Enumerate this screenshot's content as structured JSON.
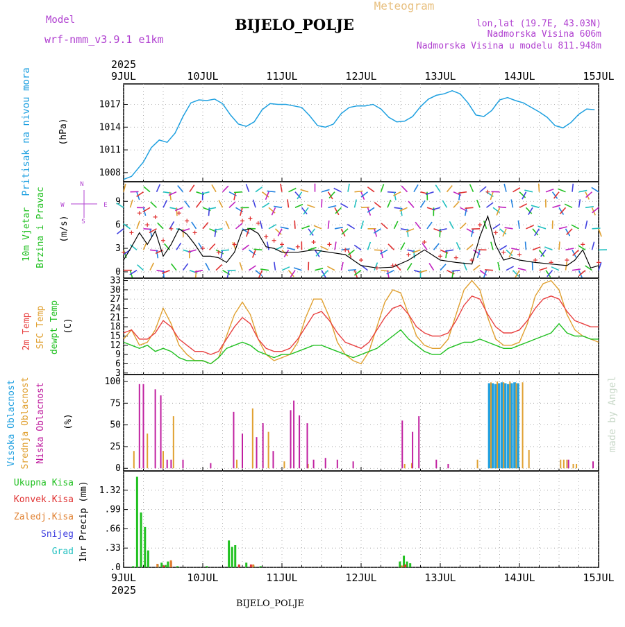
{
  "header": {
    "model_label": "Model",
    "model_name": "wrf-nmm_v3.9.1  e1km",
    "title": "BIJELO_POLJE",
    "meteogram_label": "Meteogram",
    "lonlat": "lon,lat (19.7E, 43.03N)",
    "elevation": "Nadmorska Visina 606m",
    "model_elevation": "Nadmorska Visina u modelu 811.948m"
  },
  "footer": {
    "station": "BIJELO_POLJE",
    "watermark": "made by Angel"
  },
  "time_axis": {
    "year": "2025",
    "tick_labels": [
      "9JUL",
      "10JUL",
      "11JUL",
      "12JUL",
      "13JUL",
      "14JUL",
      "15JUL"
    ]
  },
  "colors": {
    "pressure": "#1ea0e0",
    "wind_speed": "#000000",
    "gust": "#e03030",
    "temp2m": "#e84040",
    "sfc_temp": "#e0a030",
    "dewpoint": "#20c020",
    "cloud_high": "#20a0e0",
    "cloud_mid": "#e0a030",
    "cloud_low": "#c020a0",
    "rain_total": "#20c020",
    "rain_conv": "#e03030",
    "freezing": "#e08030",
    "snow": "#4040e0",
    "hail": "#20c0c0",
    "axis_purple": "#b040d0"
  },
  "chart_data": [
    {
      "type": "line",
      "panel": "pressure",
      "ylabel_line1": "Pritisak na nivou mora",
      "ylabel_unit": "(hPa)",
      "yticks": [
        1008,
        1011,
        1014,
        1017
      ],
      "ylim": [
        1006.8,
        1019.7
      ],
      "grid": true,
      "series": [
        {
          "name": "Pritisak na nivou mora",
          "x_days": [
            0,
            0.1,
            0.25,
            0.35,
            0.45,
            0.55,
            0.65,
            0.75,
            0.85,
            0.95,
            1.05,
            1.15,
            1.25,
            1.35,
            1.45,
            1.55,
            1.65,
            1.75,
            1.85,
            1.95,
            2.05,
            2.15,
            2.25,
            2.35,
            2.45,
            2.55,
            2.65,
            2.75,
            2.85,
            2.95,
            3.05,
            3.15,
            3.25,
            3.35,
            3.45,
            3.55,
            3.65,
            3.75,
            3.85,
            3.95,
            4.05,
            4.15,
            4.25,
            4.35,
            4.45,
            4.55,
            4.65,
            4.75,
            4.85,
            4.95,
            5.05,
            5.15,
            5.25,
            5.35,
            5.45,
            5.55,
            5.65,
            5.75,
            5.85,
            5.95
          ],
          "values": [
            1007.1,
            1007.5,
            1009.4,
            1011.3,
            1012.3,
            1012.0,
            1013.2,
            1015.4,
            1017.2,
            1017.6,
            1017.5,
            1017.7,
            1017.1,
            1015.6,
            1014.4,
            1014.1,
            1014.7,
            1016.3,
            1017.1,
            1017.0,
            1017.0,
            1016.8,
            1016.6,
            1015.5,
            1014.2,
            1014.0,
            1014.4,
            1015.8,
            1016.6,
            1016.8,
            1016.8,
            1017.0,
            1016.4,
            1015.3,
            1014.7,
            1014.8,
            1015.4,
            1016.7,
            1017.7,
            1018.2,
            1018.4,
            1018.8,
            1018.4,
            1017.2,
            1015.6,
            1015.4,
            1016.2,
            1017.6,
            1017.9,
            1017.5,
            1017.2,
            1016.6,
            1016.0,
            1015.3,
            1014.2,
            1013.9,
            1014.6,
            1015.7,
            1016.4,
            1016.3
          ]
        }
      ]
    },
    {
      "type": "line",
      "panel": "wind",
      "ylabel_line1": "10m Vjetar",
      "ylabel_line2": "Brzina i Pravac",
      "ylabel_unit": "(m/s)",
      "yticks": [
        0,
        3,
        6,
        9
      ],
      "ylim": [
        -0.8,
        11.5
      ],
      "compass": [
        "N",
        "W",
        "E",
        "S"
      ],
      "series": [
        {
          "name": "Brzina",
          "x_days": [
            0,
            0.1,
            0.2,
            0.3,
            0.4,
            0.5,
            0.6,
            0.7,
            0.8,
            0.9,
            1.0,
            1.1,
            1.2,
            1.3,
            1.4,
            1.5,
            1.6,
            1.7,
            1.8,
            1.9,
            2.0,
            2.2,
            2.4,
            2.6,
            2.8,
            3.0,
            3.2,
            3.4,
            3.6,
            3.8,
            4.0,
            4.2,
            4.4,
            4.5,
            4.6,
            4.7,
            4.8,
            4.9,
            5.0,
            5.2,
            5.4,
            5.6,
            5.7,
            5.8,
            5.9,
            6.0
          ],
          "values": [
            1.5,
            3.2,
            5.0,
            3.5,
            5.2,
            2.0,
            3.5,
            5.5,
            4.8,
            3.5,
            2.0,
            2.0,
            1.8,
            1.2,
            2.5,
            5.3,
            5.5,
            4.9,
            3.2,
            3.0,
            2.5,
            2.5,
            2.8,
            2.5,
            2.2,
            0.8,
            0.5,
            0.6,
            1.5,
            2.8,
            1.5,
            1.2,
            1.0,
            4.5,
            7.1,
            3.4,
            1.5,
            1.8,
            1.5,
            1.2,
            1.0,
            0.8,
            1.5,
            2.8,
            0.5,
            0.8
          ]
        },
        {
          "name": "Udar",
          "x_days": [
            0,
            0.1,
            0.2,
            0.3,
            0.4,
            0.5,
            0.6,
            0.7,
            0.8,
            0.9,
            1.0,
            1.2,
            1.4,
            1.5,
            1.6,
            1.7,
            1.8,
            1.9,
            2.0,
            2.2,
            2.4,
            2.6,
            2.8,
            3.0,
            3.2,
            3.4,
            3.6,
            3.8,
            4.0,
            4.2,
            4.4,
            4.5,
            4.6,
            4.7,
            4.8,
            5.0,
            5.2,
            5.4,
            5.6,
            5.8,
            6.0
          ],
          "values": [
            2.5,
            5.0,
            7.5,
            6.0,
            7.0,
            4.0,
            5.5,
            7.5,
            6.5,
            5.0,
            3.0,
            2.5,
            3.5,
            6.5,
            6.8,
            6.2,
            4.5,
            4.0,
            3.5,
            3.2,
            3.8,
            3.5,
            2.8,
            1.5,
            0.5,
            0.8,
            2.2,
            3.8,
            2.0,
            1.8,
            1.5,
            6.0,
            10.2,
            5.0,
            2.5,
            2.2,
            1.5,
            1.2,
            1.5,
            3.5,
            1.2
          ]
        }
      ]
    },
    {
      "type": "line",
      "panel": "temperature",
      "ylabel_line1": "2m Temp",
      "ylabel_line2": "SFC Temp",
      "ylabel_line3": "dewpt Temp",
      "ylabel_unit": "(C)",
      "yticks": [
        3,
        6,
        9,
        12,
        15,
        18,
        21,
        24,
        27,
        30,
        33
      ],
      "ylim": [
        2.5,
        33.8
      ],
      "series": [
        {
          "name": "2m Temp",
          "x_days": [
            0,
            0.1,
            0.2,
            0.3,
            0.4,
            0.5,
            0.6,
            0.7,
            0.8,
            0.9,
            1.0,
            1.1,
            1.2,
            1.3,
            1.4,
            1.5,
            1.6,
            1.7,
            1.8,
            1.9,
            2.0,
            2.1,
            2.2,
            2.3,
            2.4,
            2.5,
            2.6,
            2.7,
            2.8,
            2.9,
            3.0,
            3.1,
            3.2,
            3.3,
            3.4,
            3.5,
            3.6,
            3.7,
            3.8,
            3.9,
            4.0,
            4.1,
            4.2,
            4.3,
            4.4,
            4.5,
            4.6,
            4.7,
            4.8,
            4.9,
            5.0,
            5.1,
            5.2,
            5.3,
            5.4,
            5.5,
            5.6,
            5.7,
            5.8,
            5.9,
            6.0
          ],
          "values": [
            16,
            17,
            14,
            14,
            16,
            20,
            18,
            14,
            12,
            10,
            10,
            9,
            10,
            14,
            18,
            21,
            19,
            14,
            11,
            10,
            10,
            11,
            14,
            18,
            22,
            23,
            20,
            16,
            13,
            12,
            11,
            13,
            17,
            21,
            24,
            25,
            22,
            18,
            16,
            15,
            15,
            16,
            20,
            25,
            28,
            27,
            22,
            18,
            16,
            16,
            17,
            20,
            24,
            27,
            28,
            27,
            23,
            20,
            19,
            18,
            18
          ]
        },
        {
          "name": "SFC Temp",
          "x_days": [
            0,
            0.1,
            0.2,
            0.3,
            0.4,
            0.5,
            0.6,
            0.7,
            0.8,
            0.9,
            1.0,
            1.1,
            1.2,
            1.3,
            1.4,
            1.5,
            1.6,
            1.7,
            1.8,
            1.9,
            2.0,
            2.1,
            2.2,
            2.3,
            2.4,
            2.5,
            2.6,
            2.7,
            2.8,
            2.9,
            3.0,
            3.1,
            3.2,
            3.3,
            3.4,
            3.5,
            3.6,
            3.7,
            3.8,
            3.9,
            4.0,
            4.1,
            4.2,
            4.3,
            4.4,
            4.5,
            4.6,
            4.7,
            4.8,
            4.9,
            5.0,
            5.1,
            5.2,
            5.3,
            5.4,
            5.5,
            5.6,
            5.7,
            5.8,
            5.9,
            6.0
          ],
          "values": [
            14,
            17,
            12,
            13,
            17,
            24,
            19,
            12,
            9,
            7,
            7,
            6,
            8,
            15,
            22,
            26,
            22,
            14,
            9,
            7,
            8,
            9,
            13,
            21,
            27,
            27,
            21,
            13,
            9,
            7,
            6,
            10,
            18,
            26,
            30,
            29,
            22,
            15,
            12,
            11,
            11,
            14,
            22,
            30,
            33,
            30,
            21,
            14,
            12,
            12,
            13,
            19,
            28,
            32,
            33,
            30,
            22,
            17,
            15,
            14,
            13
          ]
        },
        {
          "name": "dewpt Temp",
          "x_days": [
            0,
            0.1,
            0.2,
            0.3,
            0.4,
            0.5,
            0.6,
            0.7,
            0.8,
            0.9,
            1.0,
            1.1,
            1.2,
            1.3,
            1.4,
            1.5,
            1.6,
            1.7,
            1.8,
            1.9,
            2.0,
            2.1,
            2.2,
            2.3,
            2.4,
            2.5,
            2.6,
            2.7,
            2.8,
            2.9,
            3.0,
            3.1,
            3.2,
            3.3,
            3.4,
            3.5,
            3.6,
            3.7,
            3.8,
            3.9,
            4.0,
            4.1,
            4.2,
            4.3,
            4.4,
            4.5,
            4.6,
            4.7,
            4.8,
            4.9,
            5.0,
            5.1,
            5.2,
            5.3,
            5.4,
            5.5,
            5.6,
            5.7,
            5.8,
            5.9,
            6.0
          ],
          "values": [
            13,
            12,
            11,
            12,
            10,
            11,
            10,
            8,
            7,
            7,
            7,
            6,
            8,
            11,
            12,
            13,
            12,
            10,
            9,
            8,
            9,
            9,
            10,
            11,
            12,
            12,
            11,
            10,
            9,
            8,
            9,
            10,
            11,
            13,
            15,
            17,
            14,
            12,
            10,
            9,
            9,
            11,
            12,
            13,
            13,
            14,
            13,
            12,
            11,
            11,
            12,
            13,
            14,
            15,
            16,
            19,
            16,
            15,
            15,
            14,
            14
          ]
        }
      ]
    },
    {
      "type": "bar",
      "panel": "clouds",
      "ylabel_line1": "Visoka Oblacnost",
      "ylabel_line2": "Srednja Oblacnost",
      "ylabel_line3": "Niska Oblacnost",
      "ylabel_unit": "(%)",
      "yticks": [
        0,
        25,
        50,
        75,
        100
      ],
      "ylim": [
        -3,
        108
      ],
      "series": [
        {
          "name": "Visoka Oblacnost",
          "x_days": [
            4.62,
            4.66,
            4.7,
            4.74,
            4.78,
            4.82,
            4.86,
            4.9,
            4.94,
            4.98
          ],
          "values": [
            98,
            98,
            97,
            98,
            99,
            98,
            97,
            98,
            99,
            98
          ]
        },
        {
          "name": "Srednja Oblacnost",
          "x_days": [
            0.13,
            0.3,
            0.5,
            0.63,
            1.43,
            1.63,
            1.83,
            2.03,
            2.33,
            3.55,
            3.64,
            4.47,
            4.64,
            4.72,
            4.8,
            4.88,
            4.96,
            5.04,
            5.12,
            5.52,
            5.56,
            5.6,
            5.68,
            5.72
          ],
          "values": [
            20,
            40,
            20,
            60,
            10,
            69,
            42,
            8,
            5,
            5,
            6,
            10,
            99,
            100,
            99,
            100,
            98,
            99,
            21,
            10,
            10,
            10,
            5,
            5
          ]
        },
        {
          "name": "Niska Oblacnost",
          "x_days": [
            0.2,
            0.25,
            0.4,
            0.47,
            0.55,
            0.6,
            0.75,
            1.1,
            1.39,
            1.5,
            1.68,
            1.76,
            1.89,
            2.11,
            2.15,
            2.22,
            2.32,
            2.4,
            2.55,
            2.7,
            2.9,
            3.52,
            3.65,
            3.73,
            3.95,
            4.1,
            5.62,
            5.93
          ],
          "values": [
            97,
            97,
            91,
            84,
            10,
            10,
            10,
            6,
            65,
            40,
            36,
            52,
            20,
            67,
            78,
            61,
            52,
            10,
            12,
            10,
            8,
            55,
            42,
            60,
            10,
            5,
            10,
            8
          ]
        }
      ]
    },
    {
      "type": "bar",
      "panel": "precipitation",
      "legend": [
        "Ukupna Kisa",
        "Konvek.Kisa",
        "Zaledj.Kisa",
        "Snijeg",
        "Grad"
      ],
      "ylabel_unit": "1hr Precip (mm)",
      "yticks": [
        0,
        0.33,
        0.66,
        0.99,
        1.32
      ],
      "ylim": [
        0,
        1.65
      ],
      "series": [
        {
          "name": "Ukupna Kisa",
          "x_days": [
            0.12,
            0.17,
            0.22,
            0.27,
            0.31,
            0.43,
            0.48,
            0.53,
            0.56,
            0.68,
            1.05,
            1.33,
            1.37,
            1.41,
            1.55,
            1.64,
            1.73,
            3.49,
            3.54,
            3.58,
            3.62
          ],
          "values": [
            0.02,
            1.55,
            0.94,
            0.69,
            0.29,
            0.05,
            0.08,
            0.04,
            0.1,
            0.02,
            0.02,
            0.46,
            0.35,
            0.38,
            0.08,
            0.03,
            0.02,
            0.1,
            0.2,
            0.1,
            0.07
          ]
        },
        {
          "name": "Konvek.Kisa",
          "x_days": [
            0.5,
            0.59,
            1.45,
            1.6,
            3.55
          ],
          "values": [
            0.03,
            0.1,
            0.05,
            0.05,
            0.05
          ]
        },
        {
          "name": "Zaledj.Kisa",
          "x_days": [
            0.41,
            0.58,
            1.62,
            3.5
          ],
          "values": [
            0.06,
            0.12,
            0.05,
            0.03
          ]
        }
      ]
    }
  ]
}
